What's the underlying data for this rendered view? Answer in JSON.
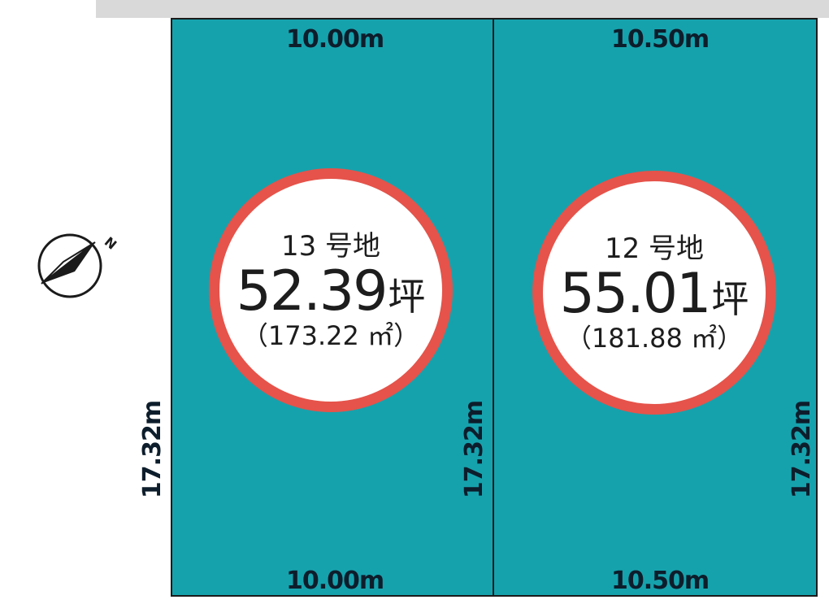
{
  "lots": [
    {
      "id": "13",
      "label": "13 号地",
      "area_tsubo": "52.39",
      "tsubo_unit": "坪",
      "area_sqm": "（173.22 ㎡）",
      "top_width": "10.00m",
      "bottom_width": "10.00m",
      "left_depth": "17.32m",
      "right_depth": "17.32m"
    },
    {
      "id": "12",
      "label": "12 号地",
      "area_tsubo": "55.01",
      "tsubo_unit": "坪",
      "area_sqm": "（181.88 ㎡）",
      "top_width": "10.50m",
      "bottom_width": "10.50m",
      "right_depth": "17.32m"
    }
  ],
  "compass": {
    "north_label": "N",
    "icon": "north-arrow-icon"
  },
  "colors": {
    "lot_fill": "#16a2ad",
    "badge_ring": "#e5534a",
    "road": "#d9d9d9"
  }
}
